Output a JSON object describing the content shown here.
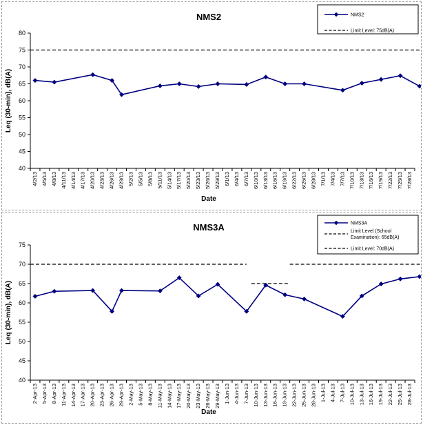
{
  "chart_data": [
    {
      "type": "line",
      "title": "NMS2",
      "xlabel": "Date",
      "ylabel": "Leq (30-min), dB(A)",
      "ylim": [
        40,
        80
      ],
      "yticks": [
        40,
        45,
        50,
        55,
        60,
        65,
        70,
        75,
        80
      ],
      "grid": false,
      "legend_position": "top-right",
      "categories": [
        "4/2/13",
        "4/5/13",
        "4/8/13",
        "4/11/13",
        "4/14/13",
        "4/17/13",
        "4/20/13",
        "4/23/13",
        "4/26/13",
        "4/29/13",
        "5/2/13",
        "5/5/13",
        "5/8/13",
        "5/11/13",
        "5/14/13",
        "5/17/13",
        "5/20/13",
        "5/23/13",
        "5/26/13",
        "5/29/13",
        "6/1/13",
        "6/4/13",
        "6/7/13",
        "6/10/13",
        "6/13/13",
        "6/16/13",
        "6/19/13",
        "6/22/13",
        "6/25/13",
        "6/28/13",
        "7/1/13",
        "7/4/13",
        "7/7/13",
        "7/10/13",
        "7/13/13",
        "7/16/13",
        "7/19/13",
        "7/22/13",
        "7/25/13",
        "7/28/13"
      ],
      "series": [
        {
          "name": "NMS2",
          "color": "#000080",
          "marker": "diamond",
          "points": [
            {
              "x": 0,
              "y": 66.0
            },
            {
              "x": 2,
              "y": 65.5
            },
            {
              "x": 6,
              "y": 67.7
            },
            {
              "x": 8,
              "y": 66.0
            },
            {
              "x": 9,
              "y": 61.8
            },
            {
              "x": 13,
              "y": 64.4
            },
            {
              "x": 15,
              "y": 65.0
            },
            {
              "x": 17,
              "y": 64.2
            },
            {
              "x": 19,
              "y": 65.0
            },
            {
              "x": 22,
              "y": 64.8
            },
            {
              "x": 24,
              "y": 67.0
            },
            {
              "x": 26,
              "y": 65.0
            },
            {
              "x": 28,
              "y": 65.0
            },
            {
              "x": 32,
              "y": 63.1
            },
            {
              "x": 34,
              "y": 65.2
            },
            {
              "x": 36,
              "y": 66.3
            },
            {
              "x": 38,
              "y": 67.4
            },
            {
              "x": 40,
              "y": 64.3
            }
          ]
        }
      ],
      "limits": [
        {
          "name": "Limit Level: 75dB(A)",
          "value": 75,
          "segments": [
            [
              -0.5,
              40.5
            ]
          ]
        }
      ]
    },
    {
      "type": "line",
      "title": "NMS3A",
      "xlabel": "Date",
      "ylabel": "Leq (30-min), dB(A)",
      "ylim": [
        40,
        75
      ],
      "yticks": [
        40,
        45,
        50,
        55,
        60,
        65,
        70,
        75
      ],
      "grid": false,
      "legend_position": "top-right",
      "categories": [
        "2-Apr-13",
        "5-Apr-13",
        "8-Apr-13",
        "11-Apr-13",
        "14-Apr-13",
        "17-Apr-13",
        "20-Apr-13",
        "23-Apr-13",
        "26-Apr-13",
        "29-Apr-13",
        "2-May-13",
        "5-May-13",
        "8-May-13",
        "11-May-13",
        "14-May-13",
        "17-May-13",
        "20-May-13",
        "23-May-13",
        "26-May-13",
        "29-May-13",
        "1-Jun-13",
        "4-Jun-13",
        "7-Jun-13",
        "10-Jun-13",
        "13-Jun-13",
        "16-Jun-13",
        "19-Jun-13",
        "22-Jun-13",
        "25-Jun-13",
        "28-Jun-13",
        "1-Jul-13",
        "4-Jul-13",
        "7-Jul-13",
        "10-Jul-13",
        "13-Jul-13",
        "16-Jul-13",
        "19-Jul-13",
        "22-Jul-13",
        "25-Jul-13",
        "28-Jul-13"
      ],
      "series": [
        {
          "name": "NMS3A",
          "color": "#000080",
          "marker": "diamond",
          "points": [
            {
              "x": 0,
              "y": 61.7
            },
            {
              "x": 2,
              "y": 63.0
            },
            {
              "x": 6,
              "y": 63.2
            },
            {
              "x": 8,
              "y": 57.8
            },
            {
              "x": 9,
              "y": 63.2
            },
            {
              "x": 13,
              "y": 63.1
            },
            {
              "x": 15,
              "y": 66.5
            },
            {
              "x": 17,
              "y": 61.8
            },
            {
              "x": 19,
              "y": 64.8
            },
            {
              "x": 22,
              "y": 57.8
            },
            {
              "x": 24,
              "y": 64.6
            },
            {
              "x": 26,
              "y": 62.1
            },
            {
              "x": 28,
              "y": 61.0
            },
            {
              "x": 32,
              "y": 56.5
            },
            {
              "x": 34,
              "y": 61.8
            },
            {
              "x": 36,
              "y": 64.9
            },
            {
              "x": 38,
              "y": 66.2
            },
            {
              "x": 40,
              "y": 66.8
            }
          ]
        }
      ],
      "limits": [
        {
          "name": "Limit Level (School Examination): 65dB(A)",
          "value": 65,
          "segments": [
            [
              22.5,
              26.5
            ]
          ]
        },
        {
          "name": "Limit Level: 70dB(A)",
          "value": 70,
          "segments": [
            [
              -0.5,
              22.0
            ],
            [
              26.5,
              40.5
            ]
          ]
        }
      ]
    }
  ],
  "panels": [
    {
      "legend": {
        "series_label": "NMS2",
        "limit_lines": [
          "Limit Level: 75dB(A)"
        ]
      }
    },
    {
      "legend": {
        "series_label": "NMS3A",
        "limit_lines": [
          "Limit Level (School Examination): 65dB(A)",
          "Limit Level: 70dB(A)"
        ]
      }
    }
  ]
}
